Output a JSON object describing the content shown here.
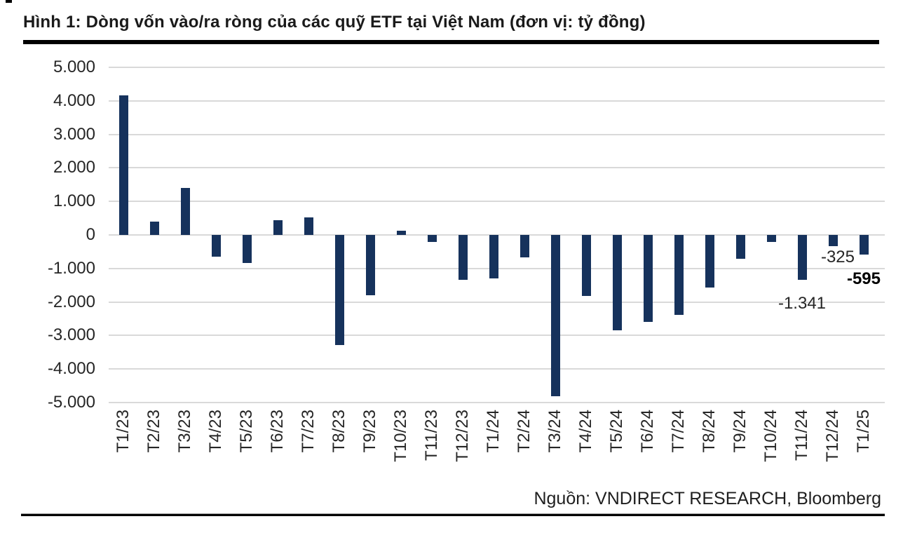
{
  "figure": {
    "title": "Hình 1: Dòng vốn vào/ra ròng của các quỹ ETF tại Việt Nam (đơn vị: tỷ đồng)",
    "source": "Nguồn: VNDIRECT RESEARCH, Bloomberg"
  },
  "chart_data": {
    "type": "bar",
    "title": "Dòng vốn vào/ra ròng của các quỹ ETF tại Việt Nam",
    "unit": "tỷ đồng",
    "categories": [
      "T1/23",
      "T2/23",
      "T3/23",
      "T4/23",
      "T5/23",
      "T6/23",
      "T7/23",
      "T8/23",
      "T9/23",
      "T10/23",
      "T11/23",
      "T12/23",
      "T1/24",
      "T2/24",
      "T3/24",
      "T4/24",
      "T5/24",
      "T6/24",
      "T7/24",
      "T8/24",
      "T9/24",
      "T10/24",
      "T11/24",
      "T12/24",
      "T1/25"
    ],
    "values": [
      4160,
      390,
      1410,
      -640,
      -830,
      440,
      530,
      -3290,
      -1800,
      120,
      -210,
      -1340,
      -1290,
      -660,
      -4820,
      -1830,
      -2850,
      -2590,
      -2390,
      -1560,
      -720,
      -210,
      -1341,
      -325,
      -595
    ],
    "ylim": [
      -5000,
      5000
    ],
    "ytick_values": [
      5000,
      4000,
      3000,
      2000,
      1000,
      0,
      -1000,
      -2000,
      -3000,
      -4000,
      -5000
    ],
    "ytick_labels": [
      "5.000",
      "4.000",
      "3.000",
      "2.000",
      "1.000",
      "0",
      "-1.000",
      "-2.000",
      "-3.000",
      "-4.000",
      "-5.000"
    ],
    "grid": "horizontal",
    "legend": "none",
    "bar_color": "#16325c",
    "data_labels": [
      {
        "category": "T11/24",
        "text": "-1.341",
        "bold": false
      },
      {
        "category": "T12/24",
        "text": "-325",
        "bold": false
      },
      {
        "category": "T1/25",
        "text": "-595",
        "bold": true
      }
    ]
  }
}
